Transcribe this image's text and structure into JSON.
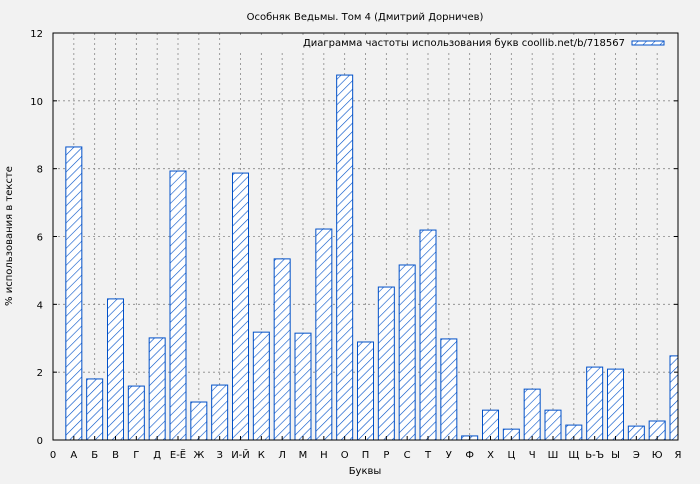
{
  "chart_data": {
    "type": "bar",
    "title": "Особняк Ведьмы. Том 4 (Дмитрий Дорничев)",
    "xlabel": "Буквы",
    "ylabel": "% использования в тексте",
    "legend": {
      "label": "Диаграмма частоты использования букв coollib.net/b/718567",
      "placement": "top-right"
    },
    "ylim": [
      0,
      12
    ],
    "yticks": [
      0,
      2,
      4,
      6,
      8,
      10,
      12
    ],
    "x_origin_label": "0",
    "grid": true,
    "categories": [
      "А",
      "Б",
      "В",
      "Г",
      "Д",
      "Е-Ё",
      "Ж",
      "З",
      "И-Й",
      "К",
      "Л",
      "М",
      "Н",
      "О",
      "П",
      "Р",
      "С",
      "Т",
      "У",
      "Ф",
      "Х",
      "Ц",
      "Ч",
      "Ш",
      "Щ",
      "Ь-Ъ",
      "Ы",
      "Э",
      "Ю",
      "Я"
    ],
    "values": [
      8.64,
      1.8,
      4.16,
      1.59,
      3.01,
      7.93,
      1.12,
      1.62,
      7.87,
      3.18,
      5.34,
      3.15,
      6.22,
      10.76,
      2.89,
      4.51,
      5.16,
      6.19,
      2.98,
      0.12,
      0.88,
      0.32,
      1.5,
      0.88,
      0.44,
      2.15,
      2.09,
      0.41,
      0.56,
      2.48
    ],
    "colors": {
      "bar_stroke": "#0050c8",
      "background": "#f2f2f2"
    }
  }
}
